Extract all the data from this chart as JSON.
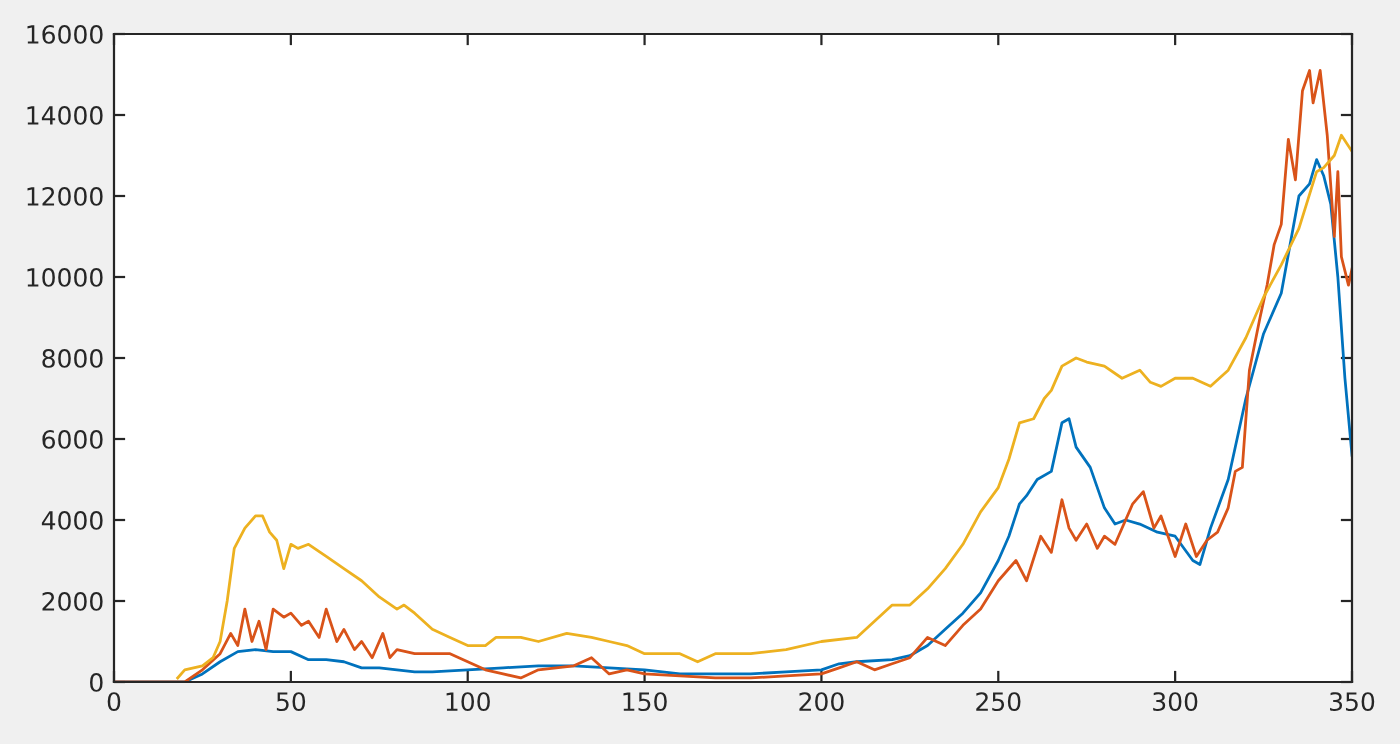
{
  "chart_data": {
    "type": "line",
    "xlim": [
      0,
      350
    ],
    "ylim": [
      0,
      16000
    ],
    "xticks": [
      0,
      50,
      100,
      150,
      200,
      250,
      300,
      350
    ],
    "yticks": [
      0,
      2000,
      4000,
      6000,
      8000,
      10000,
      12000,
      14000,
      16000
    ],
    "grid": false,
    "legend": false,
    "marker": "none",
    "line_style": "solid",
    "series": [
      {
        "color": "#0072bd",
        "x": [
          0,
          20,
          25,
          30,
          35,
          40,
          45,
          50,
          55,
          60,
          65,
          70,
          75,
          80,
          85,
          90,
          100,
          110,
          120,
          130,
          140,
          150,
          160,
          170,
          180,
          190,
          200,
          205,
          210,
          220,
          225,
          230,
          235,
          240,
          245,
          250,
          253,
          256,
          258,
          261,
          265,
          268,
          270,
          272,
          276,
          280,
          283,
          286,
          290,
          295,
          300,
          305,
          307,
          310,
          315,
          320,
          325,
          330,
          335,
          338,
          340,
          342,
          344,
          346,
          348,
          350
        ],
        "values": [
          0,
          0,
          200,
          500,
          750,
          800,
          750,
          750,
          550,
          550,
          500,
          350,
          350,
          300,
          250,
          250,
          300,
          350,
          400,
          400,
          350,
          300,
          200,
          200,
          200,
          250,
          300,
          450,
          500,
          550,
          650,
          900,
          1300,
          1700,
          2200,
          3000,
          3600,
          4400,
          4600,
          5000,
          5200,
          6400,
          6500,
          5800,
          5300,
          4300,
          3900,
          4000,
          3900,
          3700,
          3600,
          3000,
          2900,
          3800,
          5000,
          7000,
          8600,
          9600,
          12000,
          12300,
          12900,
          12500,
          11800,
          10000,
          7500,
          5600
        ]
      },
      {
        "color": "#d95319",
        "x": [
          0,
          20,
          25,
          30,
          33,
          35,
          37,
          39,
          41,
          43,
          45,
          48,
          50,
          53,
          55,
          58,
          60,
          63,
          65,
          68,
          70,
          73,
          76,
          78,
          80,
          85,
          90,
          95,
          100,
          105,
          110,
          115,
          120,
          125,
          130,
          135,
          140,
          145,
          150,
          160,
          170,
          180,
          190,
          200,
          205,
          210,
          215,
          220,
          225,
          230,
          235,
          240,
          245,
          250,
          255,
          258,
          262,
          265,
          268,
          270,
          272,
          275,
          278,
          280,
          283,
          288,
          291,
          294,
          296,
          300,
          303,
          306,
          309,
          312,
          315,
          317,
          319,
          321,
          324,
          326,
          328,
          330,
          332,
          334,
          336,
          338,
          339,
          341,
          343,
          345,
          346,
          347,
          349,
          350
        ],
        "values": [
          0,
          0,
          300,
          700,
          1200,
          900,
          1800,
          1000,
          1500,
          800,
          1800,
          1600,
          1700,
          1400,
          1500,
          1100,
          1800,
          1000,
          1300,
          800,
          1000,
          600,
          1200,
          600,
          800,
          700,
          700,
          700,
          500,
          300,
          200,
          100,
          300,
          350,
          400,
          600,
          200,
          300,
          200,
          150,
          100,
          100,
          150,
          200,
          350,
          500,
          300,
          450,
          600,
          1100,
          900,
          1400,
          1800,
          2500,
          3000,
          2500,
          3600,
          3200,
          4500,
          3800,
          3500,
          3900,
          3300,
          3600,
          3400,
          4400,
          4700,
          3800,
          4100,
          3100,
          3900,
          3100,
          3500,
          3700,
          4300,
          5200,
          5300,
          7700,
          9000,
          9800,
          10800,
          11300,
          13400,
          12400,
          14600,
          15100,
          14300,
          15100,
          13500,
          11000,
          12600,
          10500,
          9800,
          10200
        ]
      },
      {
        "color": "#edb120",
        "x": [
          18,
          20,
          25,
          28,
          30,
          32,
          34,
          37,
          40,
          42,
          44,
          46,
          48,
          50,
          52,
          55,
          60,
          65,
          70,
          75,
          80,
          82,
          85,
          90,
          95,
          100,
          105,
          108,
          115,
          120,
          128,
          135,
          140,
          145,
          150,
          160,
          165,
          170,
          180,
          190,
          200,
          210,
          220,
          225,
          230,
          235,
          240,
          245,
          250,
          253,
          256,
          260,
          263,
          265,
          268,
          272,
          275,
          280,
          285,
          290,
          293,
          296,
          300,
          305,
          310,
          315,
          320,
          325,
          330,
          335,
          340,
          342,
          345,
          347,
          350
        ],
        "values": [
          100,
          300,
          400,
          600,
          1000,
          2000,
          3300,
          3800,
          4100,
          4100,
          3700,
          3500,
          2800,
          3400,
          3300,
          3400,
          3100,
          2800,
          2500,
          2100,
          1800,
          1900,
          1700,
          1300,
          1100,
          900,
          900,
          1100,
          1100,
          1000,
          1200,
          1100,
          1000,
          900,
          700,
          700,
          500,
          700,
          700,
          800,
          1000,
          1100,
          1900,
          1900,
          2300,
          2800,
          3400,
          4200,
          4800,
          5500,
          6400,
          6500,
          7000,
          7200,
          7800,
          8000,
          7900,
          7800,
          7500,
          7700,
          7400,
          7300,
          7500,
          7500,
          7300,
          7700,
          8500,
          9500,
          10300,
          11200,
          12600,
          12700,
          13000,
          13500,
          13100
        ]
      }
    ]
  }
}
